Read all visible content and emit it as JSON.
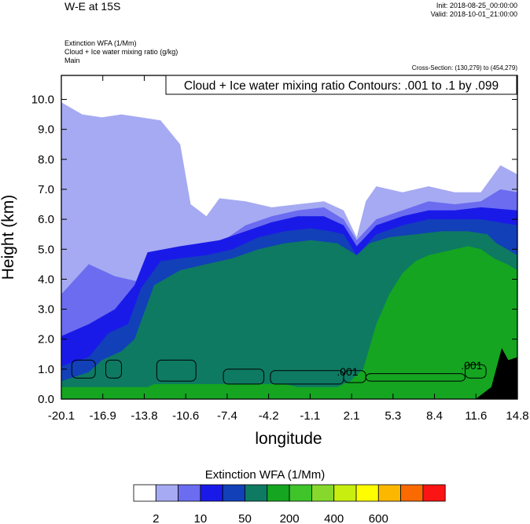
{
  "header": {
    "title": "W-E at 15S",
    "init": "Init: 2018-08-25_00:00:00",
    "valid": "Valid: 2018-10-01_21:00:00",
    "fields": [
      "Extinction WFA   (1/Mm)",
      "Cloud + Ice water mixing ratio   (g/kg)",
      "Main"
    ],
    "cross_section": "Cross-Section: (130,279) to (454,279)"
  },
  "colorbar": {
    "title": "Extinction WFA  (1/Mm)",
    "colors": [
      "#ffffff",
      "#a6aaf2",
      "#6b6cf0",
      "#1a1ae8",
      "#1240b8",
      "#0e7a62",
      "#15a521",
      "#3fc42a",
      "#86d92c",
      "#c8ee10",
      "#fefe00",
      "#fcb800",
      "#fa6a00",
      "#fa1414"
    ],
    "labels": [
      {
        "after_box": 1,
        "text": "2"
      },
      {
        "after_box": 3,
        "text": "10"
      },
      {
        "after_box": 5,
        "text": "50"
      },
      {
        "after_box": 7,
        "text": "200"
      },
      {
        "after_box": 9,
        "text": "400"
      },
      {
        "after_box": 11,
        "text": "600"
      }
    ]
  },
  "chart_data": {
    "type": "contour",
    "title": "W-E at 15S",
    "xlabel": "longitude",
    "ylabel": "Height (km)",
    "xlim": [
      -20.1,
      14.8
    ],
    "ylim": [
      0.0,
      10.8
    ],
    "x_ticks": [
      "-20.1",
      "-16.9",
      "-13.8",
      "-10.6",
      "-7.4",
      "-4.2",
      "-1.1",
      "2.1",
      "5.3",
      "8.4",
      "11.6",
      "14.8"
    ],
    "y_ticks": [
      "0.0",
      "1.0",
      "2.0",
      "3.0",
      "4.0",
      "5.0",
      "6.0",
      "7.0",
      "8.0",
      "9.0",
      "10.0"
    ],
    "contour_info": "Cloud + Ice water mixing ratio Contours: .001 to .1 by .099",
    "contour_labels": [
      {
        "text": ".001",
        "x": 1.8,
        "y": 0.78
      },
      {
        "text": ".001",
        "x": 11.3,
        "y": 1.0
      }
    ],
    "layers": [
      {
        "name": "level-2",
        "color": "#a6aaf2",
        "top_x": [
          -20.1,
          -18.5,
          -17.0,
          -15.5,
          -14.0,
          -12.5,
          -11.0,
          -10.2,
          -9.0,
          -8.0,
          -6.0,
          -4.0,
          -2.0,
          0.0,
          1.5,
          2.5,
          3.2,
          4.0,
          6.0,
          8.0,
          10.0,
          12.0,
          13.5,
          14.8
        ],
        "top_y": [
          9.9,
          9.5,
          9.4,
          9.5,
          9.4,
          9.3,
          8.5,
          6.5,
          6.1,
          6.7,
          6.6,
          6.4,
          6.5,
          6.6,
          6.3,
          5.4,
          6.6,
          7.1,
          6.9,
          7.1,
          6.9,
          6.9,
          7.8,
          7.5
        ]
      },
      {
        "name": "level-3",
        "color": "#6b6cf0",
        "top_x": [
          -20.1,
          -18.0,
          -16.0,
          -14.0,
          -12.0,
          -10.0,
          -8.0,
          -6.0,
          -4.0,
          -2.0,
          0.0,
          1.5,
          2.5,
          4.0,
          6.0,
          8.0,
          10.0,
          12.0,
          13.5,
          14.8
        ],
        "top_y": [
          3.5,
          4.5,
          4.1,
          3.9,
          4.2,
          4.5,
          5.2,
          5.8,
          6.1,
          6.3,
          6.4,
          6.0,
          5.3,
          6.0,
          6.3,
          6.6,
          6.5,
          6.6,
          7.0,
          6.9
        ]
      },
      {
        "name": "level-4",
        "color": "#1a1ae8",
        "top_x": [
          -20.1,
          -18.0,
          -16.0,
          -14.5,
          -13.5,
          -11.0,
          -8.0,
          -6.0,
          -4.0,
          -2.0,
          0.0,
          1.5,
          2.5,
          4.0,
          6.0,
          8.0,
          10.0,
          12.0,
          14.8
        ],
        "top_y": [
          2.1,
          2.5,
          3.0,
          3.8,
          4.9,
          5.1,
          5.3,
          5.6,
          5.9,
          6.1,
          6.1,
          5.8,
          5.1,
          5.8,
          6.1,
          6.3,
          6.3,
          6.4,
          6.3
        ]
      },
      {
        "name": "level-5",
        "color": "#1240b8",
        "top_x": [
          -20.1,
          -18.0,
          -16.5,
          -15.0,
          -14.0,
          -12.5,
          -11.0,
          -9.0,
          -7.0,
          -5.0,
          -3.0,
          -1.0,
          0.5,
          1.5,
          2.5,
          4.0,
          6.0,
          8.0,
          10.0,
          12.0,
          14.8
        ],
        "top_y": [
          1.1,
          1.4,
          2.2,
          2.5,
          3.7,
          4.6,
          4.7,
          4.8,
          5.0,
          5.4,
          5.6,
          5.7,
          5.6,
          5.5,
          4.8,
          5.5,
          5.8,
          6.0,
          6.0,
          6.0,
          5.8
        ]
      },
      {
        "name": "level-6",
        "color": "#0e7a62",
        "top_x": [
          -20.1,
          -18.0,
          -17.0,
          -15.5,
          -14.5,
          -13.0,
          -11.0,
          -9.0,
          -7.0,
          -5.0,
          -3.0,
          -1.0,
          1.0,
          2.5,
          3.5,
          5.0,
          7.0,
          9.0,
          11.0,
          12.5,
          13.2,
          14.8
        ],
        "top_y": [
          0.6,
          0.9,
          1.3,
          1.6,
          2.0,
          3.8,
          4.3,
          4.5,
          4.7,
          5.0,
          5.2,
          5.3,
          5.2,
          4.8,
          5.2,
          5.4,
          5.5,
          5.6,
          5.6,
          5.5,
          5.2,
          4.8
        ]
      },
      {
        "name": "level-7",
        "color": "#15a521",
        "top_x": [
          -20.1,
          -18.5,
          -17.0,
          -16.0,
          -15.0,
          -14.5,
          -14.0,
          -13.5,
          -13.0,
          -12.0,
          -11.0,
          -10.0,
          -9.0,
          -8.0,
          -7.0,
          -6.0,
          -5.0,
          -4.0,
          -3.0,
          -2.0,
          -1.0,
          0.0,
          1.0,
          2.0,
          3.0,
          4.0,
          5.0,
          6.0,
          7.0,
          8.0,
          9.0,
          10.0,
          11.0,
          12.0,
          13.0,
          14.0,
          14.8
        ],
        "top_y": [
          0.4,
          0.4,
          0.4,
          0.4,
          0.4,
          0.4,
          0.4,
          0.4,
          0.5,
          0.5,
          0.5,
          0.5,
          0.5,
          0.5,
          0.5,
          0.5,
          0.5,
          0.5,
          0.5,
          0.4,
          0.4,
          0.4,
          0.4,
          0.6,
          1.0,
          2.5,
          3.5,
          4.2,
          4.6,
          4.8,
          4.9,
          5.0,
          5.1,
          5.0,
          4.7,
          4.5,
          4.3
        ]
      }
    ]
  }
}
